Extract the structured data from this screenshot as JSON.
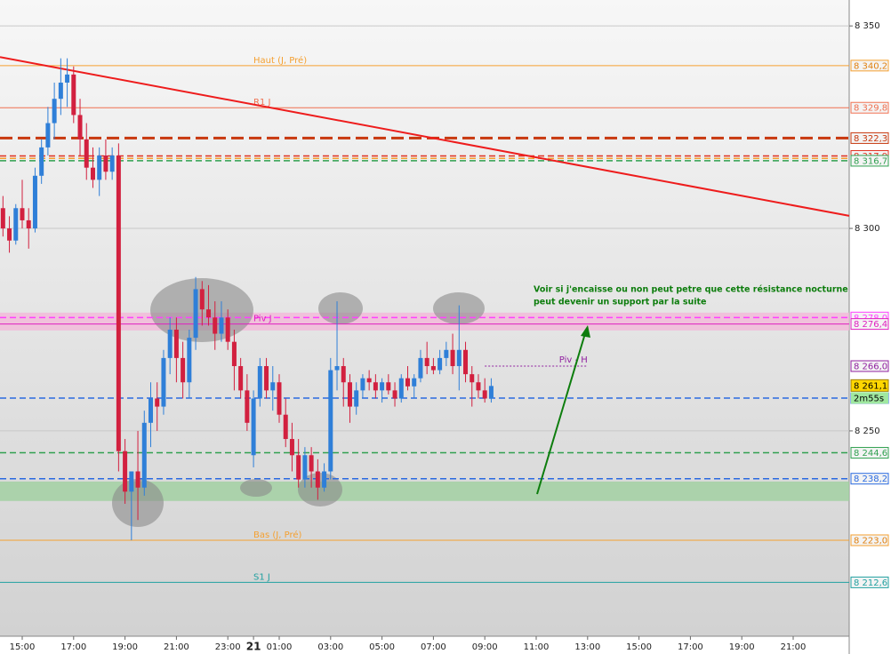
{
  "chart_data": {
    "type": "candlestick",
    "xlim": [
      14.135,
      47.18
    ],
    "ylim": [
      8199.3,
      8356.4
    ],
    "xticks": [
      {
        "value": 15,
        "label": "15:00"
      },
      {
        "value": 17,
        "label": "17:00"
      },
      {
        "value": 19,
        "label": "19:00"
      },
      {
        "value": 21,
        "label": "21:00"
      },
      {
        "value": 23,
        "label": "23:00"
      },
      {
        "value": 24,
        "label": "21"
      },
      {
        "value": 25,
        "label": "01:00"
      },
      {
        "value": 27,
        "label": "03:00"
      },
      {
        "value": 29,
        "label": "05:00"
      },
      {
        "value": 31,
        "label": "07:00"
      },
      {
        "value": 33,
        "label": "09:00"
      },
      {
        "value": 35,
        "label": "11:00"
      },
      {
        "value": 37,
        "label": "13:00"
      },
      {
        "value": 39,
        "label": "15:00"
      },
      {
        "value": 41,
        "label": "17:00"
      },
      {
        "value": 43,
        "label": "19:00"
      },
      {
        "value": 45,
        "label": "21:00"
      }
    ],
    "yticks": [
      {
        "value": 8350,
        "label": "8 350"
      },
      {
        "value": 8300,
        "label": "8 300"
      },
      {
        "value": 8250,
        "label": "8 250"
      }
    ],
    "grid": true,
    "up_color": "#2f7fd8",
    "down_color": "#d2203f",
    "x": [
      14.25,
      14.5,
      14.75,
      15,
      15.25,
      15.5,
      15.75,
      16,
      16.25,
      16.5,
      16.75,
      17,
      17.25,
      17.5,
      17.75,
      18,
      18.25,
      18.5,
      18.75,
      19,
      19.25,
      19.5,
      19.75,
      20,
      20.25,
      20.5,
      20.75,
      21,
      21.25,
      21.5,
      21.75,
      22,
      22.25,
      22.5,
      22.75,
      23,
      23.25,
      23.5,
      23.75,
      24,
      24.25,
      24.5,
      24.75,
      25,
      25.25,
      25.5,
      25.75,
      26,
      26.25,
      26.5,
      26.75,
      27,
      27.25,
      27.5,
      27.75,
      28,
      28.25,
      28.5,
      28.75,
      29,
      29.25,
      29.5,
      29.75,
      30,
      30.25,
      30.5,
      30.75,
      31,
      31.25,
      31.5,
      31.75,
      32,
      32.25,
      32.5,
      32.75,
      33,
      33.25
    ],
    "open": [
      8305,
      8300,
      8297,
      8305,
      8302,
      8300,
      8313,
      8320,
      8326,
      8332,
      8336,
      8338,
      8328,
      8322,
      8315,
      8312,
      8318,
      8314,
      8318,
      8245,
      8235,
      8240,
      8236,
      8252,
      8258,
      8256,
      8268,
      8275,
      8268,
      8262,
      8273,
      8285,
      8280,
      8278,
      8274,
      8278,
      8272,
      8266,
      8260,
      8244,
      8258,
      8266,
      8260,
      8262,
      8254,
      8248,
      8244,
      8238,
      8244,
      8240,
      8236,
      8240,
      8265,
      8266,
      8262,
      8256,
      8260,
      8263,
      8262,
      8260,
      8262,
      8260,
      8258,
      8263,
      8261,
      8263,
      8268,
      8266,
      8265,
      8268,
      8270,
      8266,
      8270,
      8264,
      8262,
      8260,
      8258
    ],
    "high": [
      8308,
      8303,
      8306,
      8312,
      8305,
      8315,
      8322,
      8330,
      8336,
      8342,
      8342,
      8340,
      8332,
      8326,
      8320,
      8320,
      8322,
      8320,
      8321,
      8248,
      8240,
      8250,
      8255,
      8262,
      8262,
      8270,
      8278,
      8278,
      8272,
      8275,
      8288,
      8287,
      8286,
      8282,
      8282,
      8280,
      8275,
      8268,
      8264,
      8260,
      8268,
      8268,
      8266,
      8264,
      8258,
      8252,
      8248,
      8246,
      8246,
      8243,
      8242,
      8268,
      8282,
      8268,
      8264,
      8262,
      8264,
      8265,
      8264,
      8263,
      8264,
      8262,
      8264,
      8266,
      8264,
      8270,
      8272,
      8268,
      8270,
      8272,
      8274,
      8281,
      8272,
      8266,
      8264,
      8263,
      8263
    ],
    "low": [
      8298,
      8294,
      8296,
      8300,
      8295,
      8299,
      8311,
      8318,
      8322,
      8328,
      8330,
      8326,
      8318,
      8312,
      8310,
      8308,
      8312,
      8312,
      8240,
      8232,
      8223,
      8228,
      8234,
      8246,
      8250,
      8254,
      8264,
      8262,
      8258,
      8258,
      8270,
      8276,
      8276,
      8270,
      8272,
      8270,
      8260,
      8258,
      8250,
      8241,
      8256,
      8258,
      8255,
      8252,
      8246,
      8240,
      8236,
      8236,
      8236,
      8233,
      8235,
      8238,
      8260,
      8256,
      8252,
      8254,
      8258,
      8260,
      8258,
      8257,
      8259,
      8256,
      8257,
      8260,
      8258,
      8262,
      8264,
      8264,
      8264,
      8266,
      8264,
      8260,
      8262,
      8256,
      8258,
      8257,
      8257
    ],
    "close": [
      8300,
      8297,
      8305,
      8302,
      8300,
      8313,
      8320,
      8326,
      8332,
      8336,
      8338,
      8328,
      8322,
      8315,
      8312,
      8318,
      8314,
      8318,
      8245,
      8235,
      8240,
      8236,
      8252,
      8258,
      8256,
      8268,
      8275,
      8268,
      8262,
      8273,
      8285,
      8280,
      8278,
      8274,
      8278,
      8272,
      8266,
      8260,
      8252,
      8258,
      8266,
      8260,
      8262,
      8254,
      8248,
      8244,
      8238,
      8244,
      8240,
      8236,
      8240,
      8265,
      8266,
      8262,
      8256,
      8260,
      8263,
      8262,
      8260,
      8262,
      8260,
      8258,
      8263,
      8261,
      8263,
      8268,
      8266,
      8265,
      8268,
      8270,
      8266,
      8270,
      8264,
      8262,
      8260,
      8258,
      8261.1
    ],
    "levels": [
      {
        "value": 8340.2,
        "label": "8 340,2",
        "name": "Haut (J, Pré)",
        "color": "#f5a030",
        "style": "solid"
      },
      {
        "value": 8329.8,
        "label": "8 329,8",
        "name": "R1 J",
        "color": "#f07050",
        "style": "solid"
      },
      {
        "value": 8322.3,
        "label": "8 322,3",
        "color": "#c8380e",
        "style": "bold-dash"
      },
      {
        "value": 8317.3,
        "label": "8 317,3",
        "color": "#f5a030",
        "style": "dash"
      },
      {
        "value": 8317.9,
        "label": "8 317,9",
        "color": "#e03020",
        "style": "dash"
      },
      {
        "value": 8316.7,
        "label": "8 316,7",
        "color": "#30a050",
        "style": "dash"
      },
      {
        "value": 8278.0,
        "label": "8 278,0",
        "color": "#ff40ff",
        "style": "dash"
      },
      {
        "value": 8276.4,
        "label": "8 276,4",
        "name": "Piv J",
        "color": "#e020c0",
        "style": "solid"
      },
      {
        "value": 8258.1,
        "label": "8 258,1",
        "color": "#2a6ae0",
        "style": "dash"
      },
      {
        "value": 8244.6,
        "label": "8 244,6",
        "color": "#30a050",
        "style": "dash"
      },
      {
        "value": 8238.2,
        "label": "8 238,2",
        "color": "#2a6ae0",
        "style": "dash"
      },
      {
        "value": 8223.0,
        "label": "8 223,0",
        "name": "Bas (J, Pré)",
        "color": "#f5a030",
        "style": "solid"
      },
      {
        "value": 8212.6,
        "label": "8 212,6",
        "name": "S1 J",
        "color": "#20a0a0",
        "style": "solid"
      }
    ],
    "short_level": {
      "value": 8266.0,
      "label": "8 266,0",
      "name": "Piv - H",
      "color": "#9020a0",
      "x": [
        33.0,
        37.0
      ]
    },
    "zones": [
      {
        "from": 8274.8,
        "to": 8279.2,
        "color": "#f2b8d8"
      },
      {
        "from": 8232.7,
        "to": 8237.5,
        "color": "#9fd09f"
      }
    ],
    "trendline": {
      "x": [
        14.135,
        47.18
      ],
      "y": [
        8342.3,
        8303.1
      ],
      "color": "#ee1c1c"
    },
    "last_price": {
      "value": 8261.1,
      "label": "8 261,1"
    },
    "timer": "2m55s",
    "annotation": [
      "Voir si j'encaisse ou non peut petre que cette résistance nocturne",
      "peut devenir un support par la suite"
    ]
  }
}
